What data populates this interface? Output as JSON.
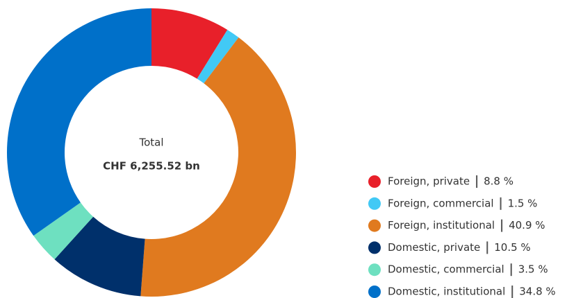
{
  "chart_data": {
    "type": "donut",
    "center_label": "Total",
    "center_value": "CHF 6,255.52 bn",
    "categories": [
      "Foreign, private",
      "Foreign, commercial",
      "Foreign, institutional",
      "Domestic, private",
      "Domestic, commercial",
      "Domestic, institutional"
    ],
    "values": [
      8.8,
      1.5,
      40.9,
      10.5,
      3.5,
      34.8
    ],
    "value_labels": [
      "8.8 %",
      "1.5 %",
      "40.9 %",
      "10.5 %",
      "3.5 %",
      "34.8 %"
    ],
    "colors": [
      "#e8202a",
      "#42c9f5",
      "#e07a1f",
      "#00306b",
      "#6ee0c0",
      "#0070c9"
    ],
    "legend": "bottom-right"
  }
}
